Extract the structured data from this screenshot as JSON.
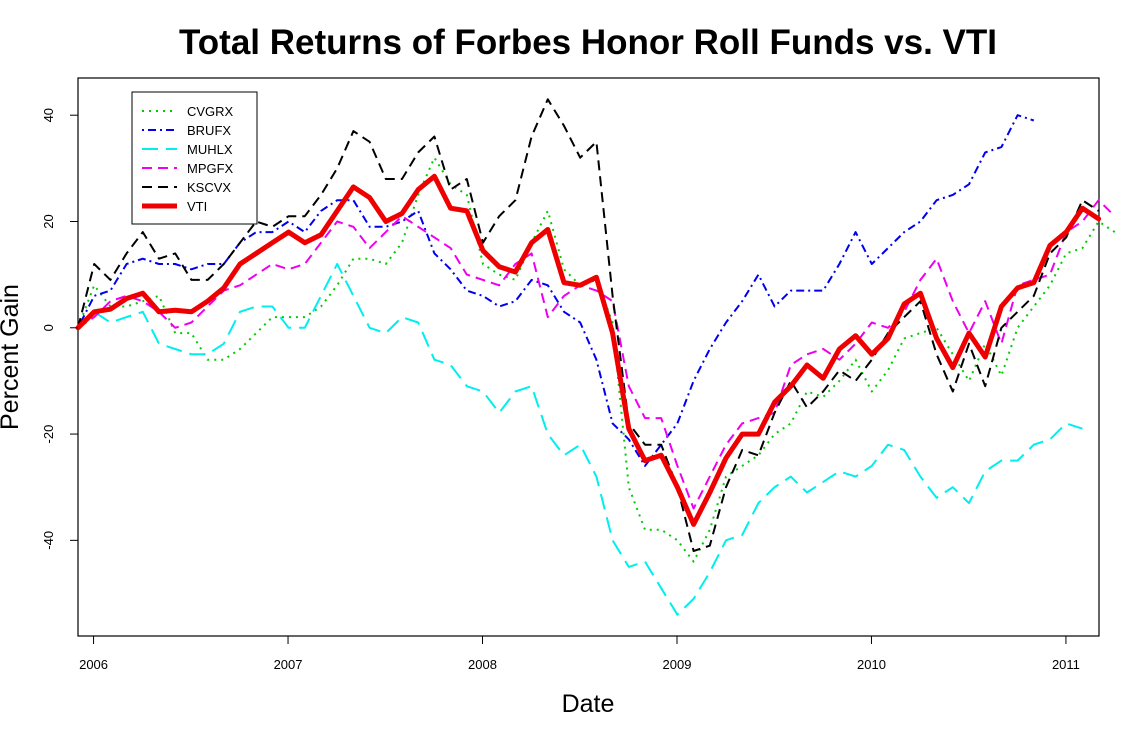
{
  "chart_data": {
    "type": "line",
    "title": "Total Returns of Forbes Honor Roll Funds vs. VTI",
    "xlabel": "Date",
    "ylabel": "Percent Gain",
    "xlim": [
      2005.92,
      2011.17
    ],
    "ylim": [
      -58,
      47
    ],
    "x_ticks": [
      2006,
      2007,
      2008,
      2009,
      2010,
      2011
    ],
    "x_tick_labels": [
      "2006",
      "2007",
      "2008",
      "2009",
      "2010",
      "2011"
    ],
    "y_ticks": [
      -40,
      -20,
      0,
      20,
      40
    ],
    "y_tick_labels": [
      "-40",
      "-20",
      "0",
      "20",
      "40"
    ],
    "legend_position": "top-left",
    "x_start": 2005.92,
    "x_step": 0.0833,
    "series": [
      {
        "name": "CVGRX",
        "color": "#00cc00",
        "dash": "dotted",
        "width": 2,
        "values": [
          0,
          8,
          4,
          4,
          5,
          6,
          -1,
          -1,
          -6,
          -6,
          -4,
          -1,
          2,
          2,
          2,
          4,
          8,
          13,
          13,
          12,
          16,
          25,
          32,
          27,
          25,
          12,
          10,
          9,
          16,
          22,
          11,
          8,
          9,
          1,
          -30,
          -38,
          -38,
          -40,
          -44,
          -38,
          -28,
          -26,
          -24,
          -20,
          -18,
          -12,
          -13,
          -10,
          -6,
          -12,
          -8,
          -2,
          -1,
          0,
          -5,
          -10,
          -3,
          -9,
          0,
          4,
          8,
          14,
          15,
          20,
          18
        ]
      },
      {
        "name": "BRUFX",
        "color": "#0000ee",
        "dash": "dashdot",
        "width": 2,
        "values": [
          0,
          6,
          7,
          12,
          13,
          12,
          12,
          11,
          12,
          12,
          16,
          18,
          18,
          20,
          18,
          22,
          24,
          24,
          19,
          19,
          20,
          22,
          14,
          11,
          7,
          6,
          4,
          5,
          9,
          8,
          3,
          1,
          -6,
          -18,
          -21,
          -26,
          -22,
          -18,
          -10,
          -4,
          1,
          5,
          10,
          4,
          7,
          7,
          7,
          12,
          18,
          12,
          15,
          18,
          20,
          24,
          25,
          27,
          33,
          34,
          40,
          39
        ]
      },
      {
        "name": "MUHLX",
        "color": "#00eeee",
        "dash": "longdash",
        "width": 2,
        "values": [
          0,
          3,
          1,
          2,
          3,
          -3,
          -4,
          -5,
          -5,
          -3,
          3,
          4,
          4,
          0,
          0,
          6,
          12,
          6,
          0,
          -1,
          2,
          1,
          -6,
          -7,
          -11,
          -12,
          -16,
          -12,
          -11,
          -20,
          -24,
          -22,
          -28,
          -40,
          -45,
          -44,
          -49,
          -54,
          -51,
          -46,
          -40,
          -39,
          -33,
          -30,
          -28,
          -31,
          -29,
          -27,
          -28,
          -26,
          -22,
          -23,
          -28,
          -32,
          -30,
          -33,
          -27,
          -25,
          -25,
          -22,
          -21,
          -18,
          -19
        ]
      },
      {
        "name": "MPGFX",
        "color": "#ee00ee",
        "dash": "dashed",
        "width": 2,
        "values": [
          0,
          2,
          5,
          6,
          5,
          3,
          0,
          1,
          4,
          7,
          8,
          10,
          12,
          11,
          12,
          16,
          20,
          19,
          15,
          18,
          21,
          19,
          17,
          15,
          10,
          9,
          8,
          12,
          14,
          2,
          6,
          8,
          7,
          5,
          -11,
          -17,
          -17,
          -26,
          -34,
          -28,
          -22,
          -18,
          -17,
          -16,
          -7,
          -5,
          -4,
          -6,
          -3,
          1,
          0,
          3,
          9,
          13,
          5,
          -1,
          5,
          -3,
          8,
          9,
          10,
          18,
          20,
          24,
          21
        ]
      },
      {
        "name": "KSCVX",
        "color": "#000000",
        "dash": "dashed",
        "width": 2,
        "values": [
          0,
          12,
          9,
          14,
          18,
          13,
          14,
          9,
          9,
          12,
          16,
          20,
          19,
          21,
          21,
          25,
          30,
          37,
          35,
          28,
          28,
          33,
          36,
          26,
          28,
          16,
          21,
          24,
          36,
          43,
          38,
          32,
          35,
          6,
          -18,
          -22,
          -22,
          -30,
          -42,
          -41,
          -30,
          -23,
          -24,
          -16,
          -10,
          -15,
          -12,
          -8,
          -10,
          -6,
          -1,
          2,
          5,
          -5,
          -12,
          -3,
          -11,
          0,
          3,
          6,
          14,
          17,
          24,
          22
        ]
      },
      {
        "name": "VTI",
        "color": "#ee0000",
        "dash": "solid",
        "width": 5,
        "values": [
          0,
          3,
          3.5,
          5.5,
          6.5,
          3,
          3.3,
          3,
          5,
          7.5,
          12,
          14,
          16,
          18,
          16,
          17.5,
          22,
          26.5,
          24.5,
          20,
          21.5,
          26,
          28.5,
          22.5,
          22,
          14.5,
          11.5,
          10.5,
          16,
          18.5,
          8.5,
          8,
          9.5,
          -1,
          -19,
          -25,
          -24,
          -30,
          -37,
          -31,
          -24.5,
          -20,
          -20,
          -14,
          -11,
          -7,
          -9.5,
          -4,
          -1.5,
          -5,
          -2,
          4.5,
          6.5,
          -2,
          -7.5,
          -1,
          -5.5,
          4,
          7.5,
          8.5,
          15.5,
          18,
          22.5,
          20.5
        ]
      }
    ]
  }
}
